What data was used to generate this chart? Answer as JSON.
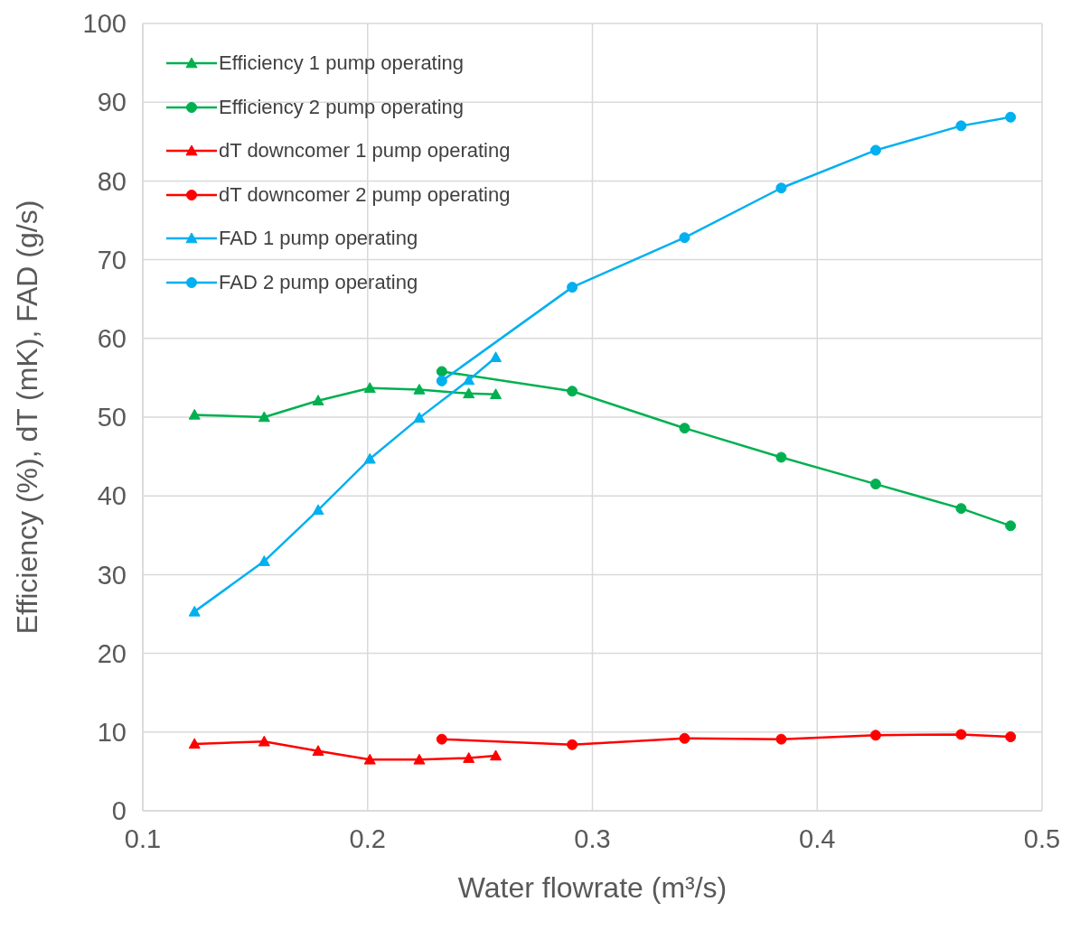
{
  "chart_data": {
    "type": "line",
    "xlabel": "Water flowrate (m³/s)",
    "ylabel": "Efficiency  (%), dT (mK), FAD (g/s)",
    "xlim": [
      0.1,
      0.5
    ],
    "xticks": [
      0.1,
      0.2,
      0.3,
      0.4,
      0.5
    ],
    "ylim": [
      0,
      100
    ],
    "yticks": [
      0,
      10,
      20,
      30,
      40,
      50,
      60,
      70,
      80,
      90,
      100
    ],
    "grid": true,
    "legend": "top left",
    "line_style": "solid",
    "series": [
      {
        "name": "Efficiency 1 pump operating",
        "color": "#00b050",
        "marker": "triangle",
        "x": [
          0.123,
          0.154,
          0.178,
          0.201,
          0.223,
          0.245,
          0.257
        ],
        "values": [
          50.3,
          50.0,
          52.1,
          53.7,
          53.5,
          53.0,
          52.9
        ]
      },
      {
        "name": "Efficiency 2 pump operating",
        "color": "#00b050",
        "marker": "circle",
        "x": [
          0.233,
          0.291,
          0.341,
          0.384,
          0.426,
          0.464,
          0.486
        ],
        "values": [
          55.8,
          53.3,
          48.6,
          44.9,
          41.5,
          38.4,
          36.2
        ]
      },
      {
        "name": "dT downcomer 1 pump operating",
        "color": "#ff0000",
        "marker": "triangle",
        "x": [
          0.123,
          0.154,
          0.178,
          0.201,
          0.223,
          0.245,
          0.257
        ],
        "values": [
          8.5,
          8.8,
          7.6,
          6.5,
          6.5,
          6.7,
          7.0
        ]
      },
      {
        "name": "dT downcomer 2 pump operating",
        "color": "#ff0000",
        "marker": "circle",
        "x": [
          0.233,
          0.291,
          0.341,
          0.384,
          0.426,
          0.464,
          0.486
        ],
        "values": [
          9.1,
          8.4,
          9.2,
          9.1,
          9.6,
          9.7,
          9.4
        ]
      },
      {
        "name": "FAD 1 pump operating",
        "color": "#00b0f0",
        "marker": "triangle",
        "x": [
          0.123,
          0.154,
          0.178,
          0.201,
          0.223,
          0.245,
          0.257
        ],
        "values": [
          25.3,
          31.7,
          38.2,
          44.7,
          49.9,
          54.7,
          57.6
        ]
      },
      {
        "name": "FAD 2 pump operating",
        "color": "#00b0f0",
        "marker": "circle",
        "x": [
          0.233,
          0.291,
          0.341,
          0.384,
          0.426,
          0.464,
          0.486
        ],
        "values": [
          54.6,
          66.5,
          72.8,
          79.1,
          83.9,
          87.0,
          88.1
        ]
      }
    ]
  }
}
